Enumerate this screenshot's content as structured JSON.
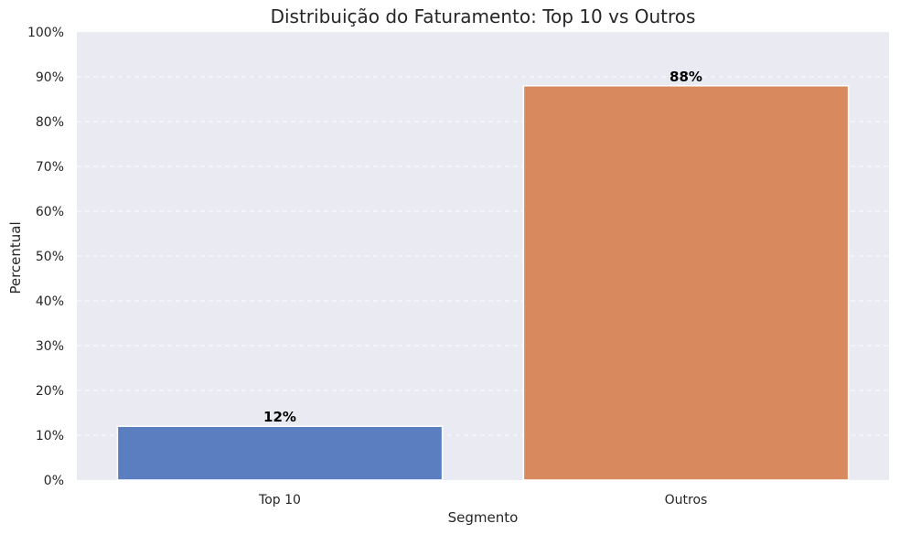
{
  "chart_data": {
    "type": "bar",
    "title": "Distribuição do Faturamento: Top 10 vs Outros",
    "xlabel": "Segmento",
    "ylabel": "Percentual",
    "categories": [
      "Top 10",
      "Outros"
    ],
    "values": [
      12,
      88
    ],
    "data_labels": [
      "12%",
      "88%"
    ],
    "ylim": [
      0,
      100
    ],
    "yticks": [
      0,
      10,
      20,
      30,
      40,
      50,
      60,
      70,
      80,
      90,
      100
    ],
    "ytick_labels": [
      "0%",
      "10%",
      "20%",
      "30%",
      "40%",
      "50%",
      "60%",
      "70%",
      "80%",
      "90%",
      "100%"
    ],
    "grid": "y-dashed",
    "colors": {
      "plot_background": "#eaeaf2",
      "grid": "#ffffff",
      "bars": [
        "#5b7ec0",
        "#d8895d"
      ]
    }
  }
}
